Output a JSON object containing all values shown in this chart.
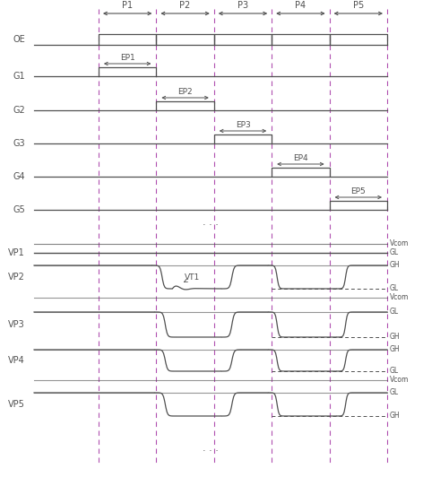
{
  "fig_width": 4.72,
  "fig_height": 5.32,
  "dpi": 100,
  "background": "#ffffff",
  "line_color": "#505050",
  "dashed_color": "#b050b0",
  "period_labels": [
    "P1",
    "P2",
    "P3",
    "P4",
    "P5"
  ],
  "ep_labels": [
    "EP1",
    "EP2",
    "EP3",
    "EP4",
    "EP5"
  ],
  "g_labels": [
    "G1",
    "G2",
    "G3",
    "G4",
    "G5"
  ],
  "vp_labels": [
    "VP1",
    "VP2",
    "VP3",
    "VP4",
    "VP5"
  ],
  "right_labels_vp1": [
    "Vcom",
    "GL"
  ],
  "right_labels_vp2": [
    "GH",
    "GL",
    "Vcom"
  ],
  "right_labels_vp3": [
    "GL",
    "GH"
  ],
  "right_labels_vp4": [
    "GH",
    "GL",
    "Vcom"
  ],
  "right_labels_vp5": [
    "GL",
    "GH"
  ]
}
